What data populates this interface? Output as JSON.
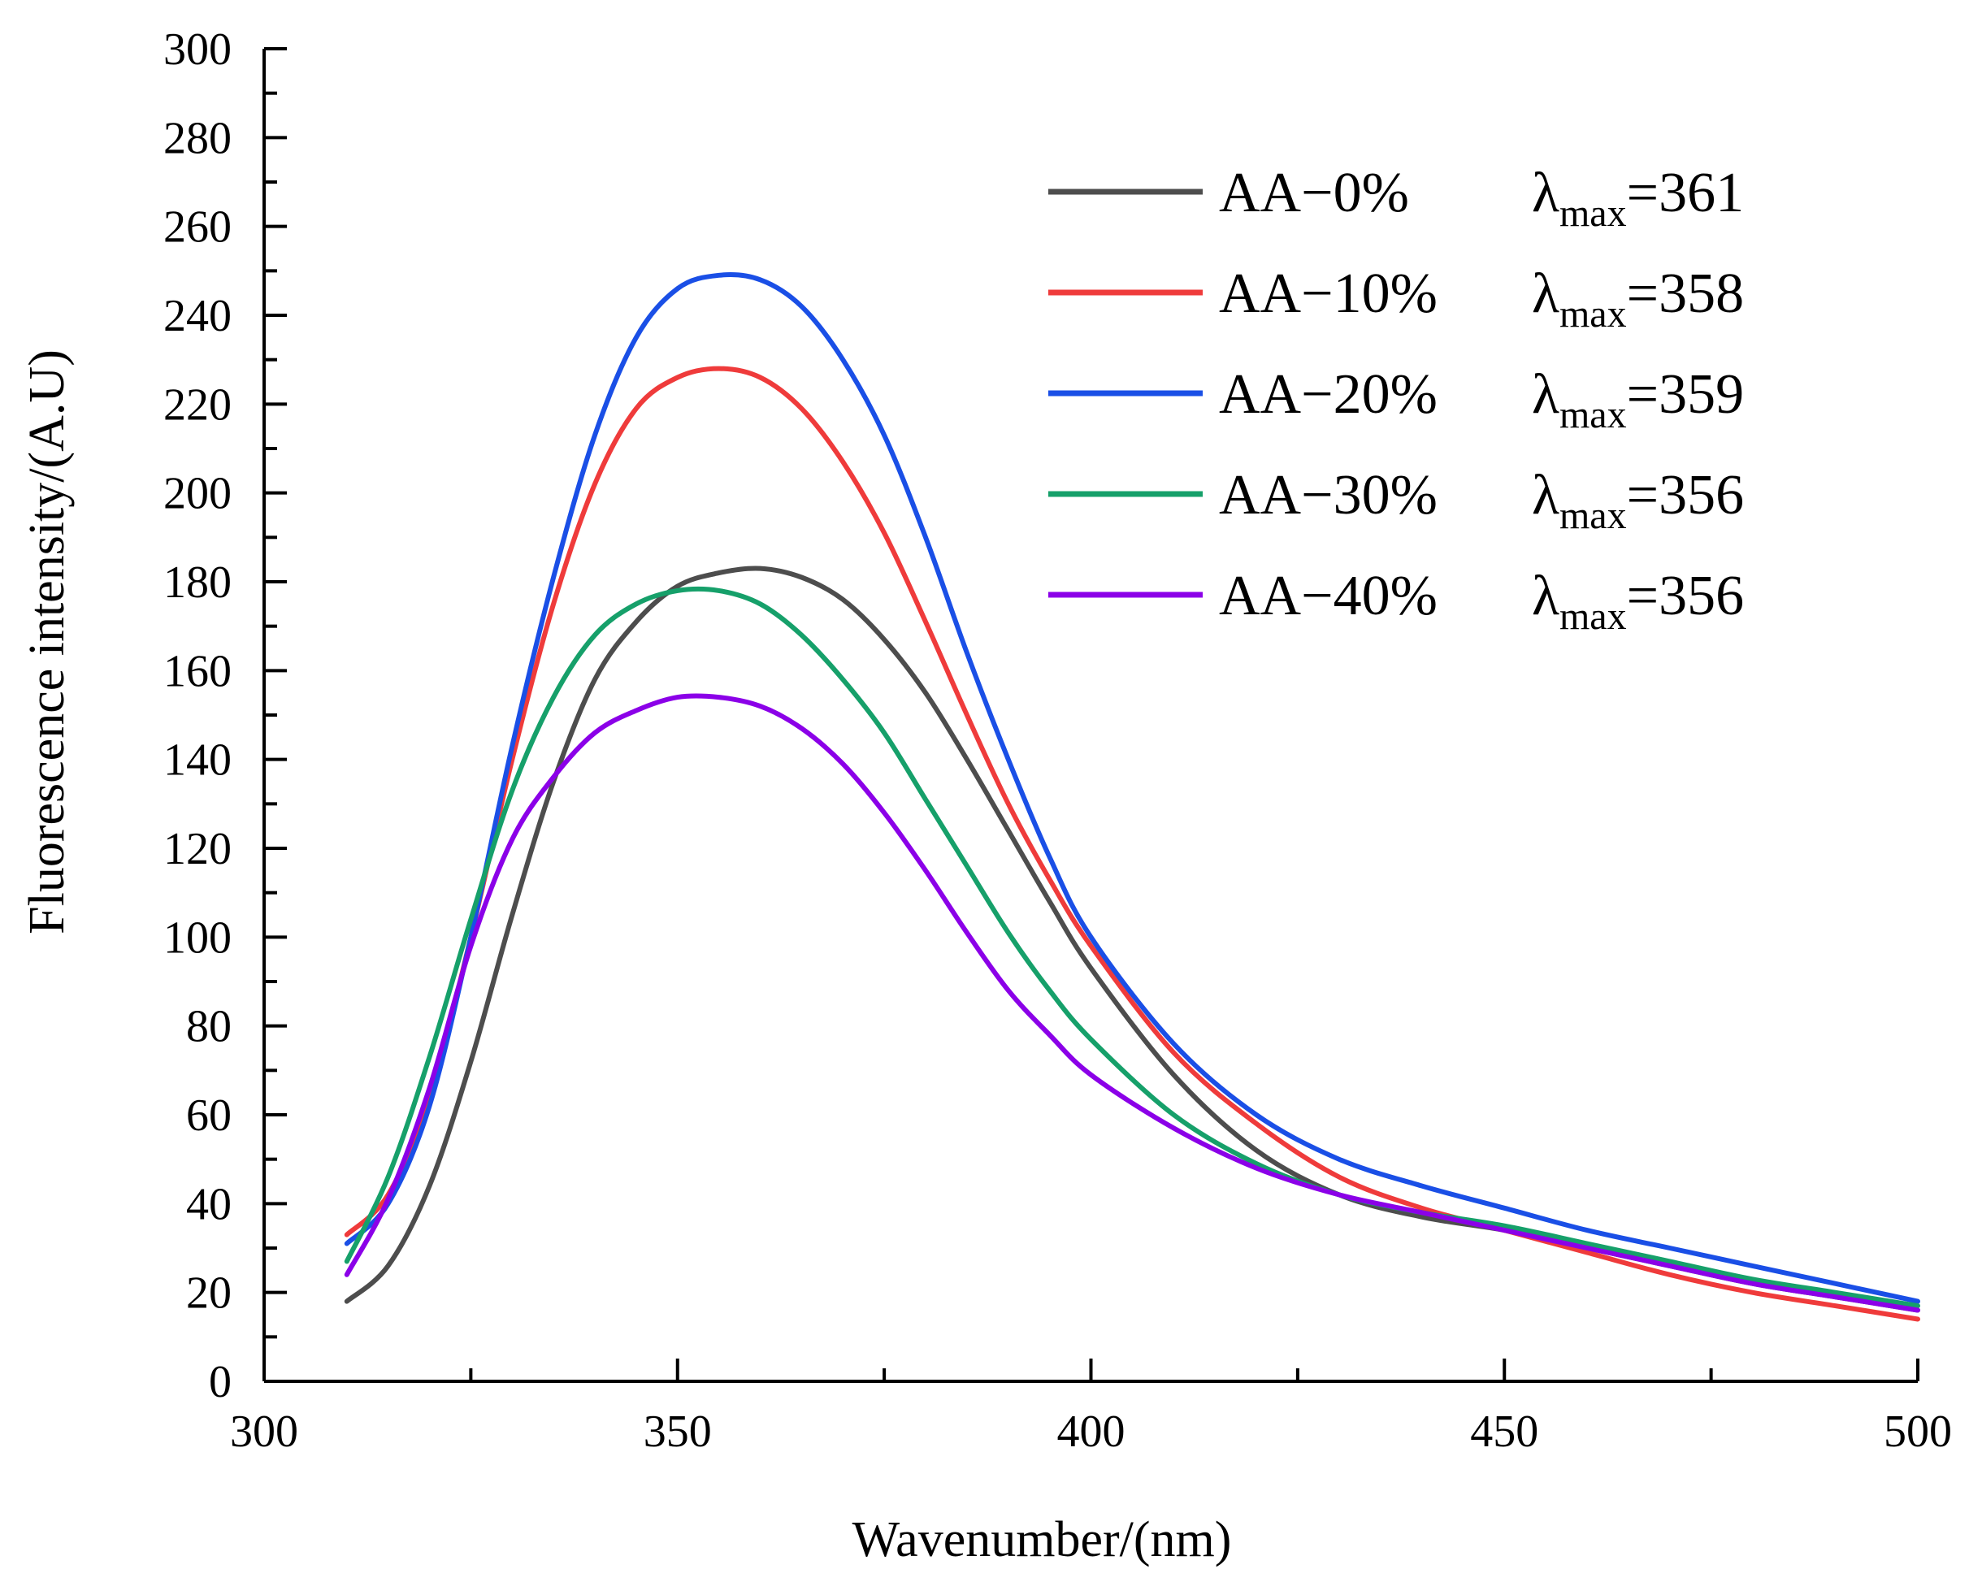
{
  "chart_data": {
    "type": "line",
    "title": "",
    "xlabel": "Wavenumber/(nm)",
    "ylabel": "Fluorescence intensity/(A.U)",
    "xlim": [
      300,
      500
    ],
    "ylim": [
      0,
      300
    ],
    "x_ticks": [
      "300",
      "350",
      "400",
      "450",
      "500"
    ],
    "y_ticks": [
      "0",
      "20",
      "40",
      "60",
      "80",
      "100",
      "120",
      "140",
      "160",
      "180",
      "200",
      "220",
      "240",
      "260",
      "280",
      "300"
    ],
    "grid": false,
    "legend_position": "top-right",
    "lambda_symbol": "λ",
    "lambda_subscript": "max",
    "x": [
      310,
      315,
      320,
      325,
      330,
      335,
      340,
      345,
      350,
      355,
      360,
      365,
      370,
      375,
      380,
      385,
      390,
      395,
      400,
      410,
      420,
      430,
      440,
      450,
      460,
      470,
      480,
      490,
      500
    ],
    "series": [
      {
        "name": "AA−0%",
        "lambda_value": "=361",
        "color": "#4d4d4d",
        "values": [
          18,
          26,
          44,
          72,
          105,
          135,
          158,
          171,
          179,
          182,
          183,
          181,
          176,
          167,
          155,
          140,
          124,
          108,
          93,
          69,
          52,
          42,
          37,
          34,
          30,
          26,
          22,
          19,
          16
        ]
      },
      {
        "name": "AA−10%",
        "lambda_value": "=358",
        "color": "#ef3b3b",
        "values": [
          33,
          42,
          64,
          100,
          140,
          175,
          202,
          219,
          226,
          228,
          226,
          219,
          207,
          191,
          171,
          150,
          130,
          113,
          98,
          74,
          58,
          46,
          39,
          34,
          29,
          24,
          20,
          17,
          14
        ]
      },
      {
        "name": "AA−20%",
        "lambda_value": "=359",
        "color": "#1a4fe6",
        "values": [
          31,
          40,
          62,
          100,
          143,
          181,
          213,
          235,
          246,
          249,
          248,
          242,
          230,
          213,
          190,
          164,
          140,
          118,
          100,
          76,
          60,
          50,
          44,
          39,
          34,
          30,
          26,
          22,
          18
        ]
      },
      {
        "name": "AA−30%",
        "lambda_value": "=356",
        "color": "#16a06a",
        "values": [
          27,
          46,
          73,
          104,
          133,
          154,
          168,
          175,
          178,
          178,
          175,
          168,
          158,
          146,
          131,
          116,
          101,
          88,
          77,
          60,
          49,
          42,
          38,
          35,
          31,
          27,
          23,
          20,
          17
        ]
      },
      {
        "name": "AA−40%",
        "lambda_value": "=356",
        "color": "#8b00e8",
        "values": [
          24,
          41,
          66,
          98,
          122,
          136,
          146,
          151,
          154,
          154,
          152,
          147,
          139,
          128,
          115,
          101,
          88,
          78,
          69,
          57,
          48,
          42,
          38,
          34,
          30,
          26,
          22,
          19,
          16
        ]
      }
    ]
  }
}
